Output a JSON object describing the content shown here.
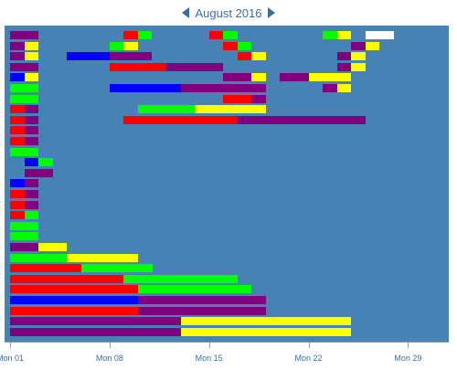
{
  "header": {
    "title": "August 2016",
    "prev_icon": "triangle-left-icon",
    "next_icon": "triangle-right-icon"
  },
  "axis": {
    "ticks": [
      "Mon 01",
      "Mon 08",
      "Mon 15",
      "Mon 22",
      "Mon 29"
    ]
  },
  "colors": {
    "plot_background": "#4682b4",
    "purple": "#800080",
    "yellow": "#ffff00",
    "red": "#ff0000",
    "green": "#00ff00",
    "blue": "#0000ff",
    "white": "#ffffff"
  },
  "rows": [
    [
      [
        "purple",
        1,
        3
      ],
      [
        "red",
        9,
        10
      ],
      [
        "green",
        10,
        11
      ],
      [
        "red",
        15,
        16
      ],
      [
        "green",
        16,
        17
      ],
      [
        "green",
        23,
        24
      ],
      [
        "yellow",
        24,
        25
      ],
      [
        "white",
        26,
        28
      ]
    ],
    [
      [
        "purple",
        1,
        2
      ],
      [
        "yellow",
        2,
        3
      ],
      [
        "green",
        8,
        9
      ],
      [
        "yellow",
        9,
        10
      ],
      [
        "red",
        16,
        17
      ],
      [
        "green",
        17,
        18
      ],
      [
        "purple",
        25,
        26
      ],
      [
        "yellow",
        26,
        27
      ]
    ],
    [
      [
        "purple",
        1,
        2
      ],
      [
        "yellow",
        2,
        3
      ],
      [
        "blue",
        5,
        8
      ],
      [
        "purple",
        8,
        11
      ],
      [
        "red",
        17,
        18
      ],
      [
        "yellow",
        18,
        19
      ],
      [
        "purple",
        24,
        25
      ],
      [
        "yellow",
        25,
        26
      ]
    ],
    [
      [
        "purple",
        1,
        3
      ],
      [
        "red",
        8,
        12
      ],
      [
        "purple",
        12,
        16
      ],
      [
        "purple",
        24,
        25
      ],
      [
        "yellow",
        25,
        26
      ]
    ],
    [
      [
        "blue",
        1,
        2
      ],
      [
        "yellow",
        2,
        3
      ],
      [
        "purple",
        16,
        18
      ],
      [
        "yellow",
        18,
        19
      ],
      [
        "purple",
        20,
        22
      ],
      [
        "yellow",
        22,
        25
      ]
    ],
    [
      [
        "green",
        1,
        3
      ],
      [
        "blue",
        8,
        13
      ],
      [
        "purple",
        13,
        19
      ],
      [
        "purple",
        23,
        24
      ],
      [
        "yellow",
        24,
        25
      ]
    ],
    [
      [
        "green",
        1,
        3
      ],
      [
        "red",
        16,
        18
      ],
      [
        "purple",
        18,
        19
      ]
    ],
    [
      [
        "red",
        1,
        2
      ],
      [
        "purple",
        2,
        3
      ],
      [
        "green",
        10,
        14
      ],
      [
        "yellow",
        14,
        19
      ]
    ],
    [
      [
        "red",
        1,
        2
      ],
      [
        "purple",
        2,
        3
      ],
      [
        "red",
        9,
        17
      ],
      [
        "purple",
        17,
        26
      ]
    ],
    [
      [
        "red",
        1,
        2
      ],
      [
        "purple",
        2,
        3
      ]
    ],
    [
      [
        "red",
        1,
        2
      ],
      [
        "purple",
        2,
        3
      ]
    ],
    [
      [
        "green",
        1,
        3
      ]
    ],
    [
      [
        "blue",
        2,
        3
      ],
      [
        "green",
        3,
        4
      ]
    ],
    [
      [
        "purple",
        2,
        4
      ]
    ],
    [
      [
        "blue",
        1,
        2
      ],
      [
        "purple",
        2,
        3
      ]
    ],
    [
      [
        "red",
        1,
        2
      ],
      [
        "purple",
        2,
        3
      ]
    ],
    [
      [
        "red",
        1,
        2
      ],
      [
        "purple",
        2,
        3
      ]
    ],
    [
      [
        "red",
        1,
        2
      ],
      [
        "green",
        2,
        3
      ]
    ],
    [
      [
        "green",
        1,
        3
      ]
    ],
    [
      [
        "green",
        1,
        3
      ]
    ],
    [
      [
        "purple",
        1,
        3
      ],
      [
        "yellow",
        3,
        5
      ]
    ],
    [
      [
        "green",
        1,
        5
      ],
      [
        "yellow",
        5,
        10
      ]
    ],
    [
      [
        "red",
        1,
        6
      ],
      [
        "green",
        6,
        11
      ]
    ],
    [
      [
        "red",
        1,
        9
      ],
      [
        "green",
        9,
        17
      ]
    ],
    [
      [
        "red",
        1,
        10
      ],
      [
        "green",
        10,
        18
      ]
    ],
    [
      [
        "blue",
        1,
        10
      ],
      [
        "purple",
        10,
        19
      ]
    ],
    [
      [
        "red",
        1,
        10
      ],
      [
        "purple",
        10,
        19
      ]
    ],
    [
      [
        "purple",
        1,
        13
      ],
      [
        "yellow",
        13,
        25
      ]
    ],
    [
      [
        "purple",
        1,
        13
      ],
      [
        "yellow",
        13,
        25
      ]
    ]
  ]
}
